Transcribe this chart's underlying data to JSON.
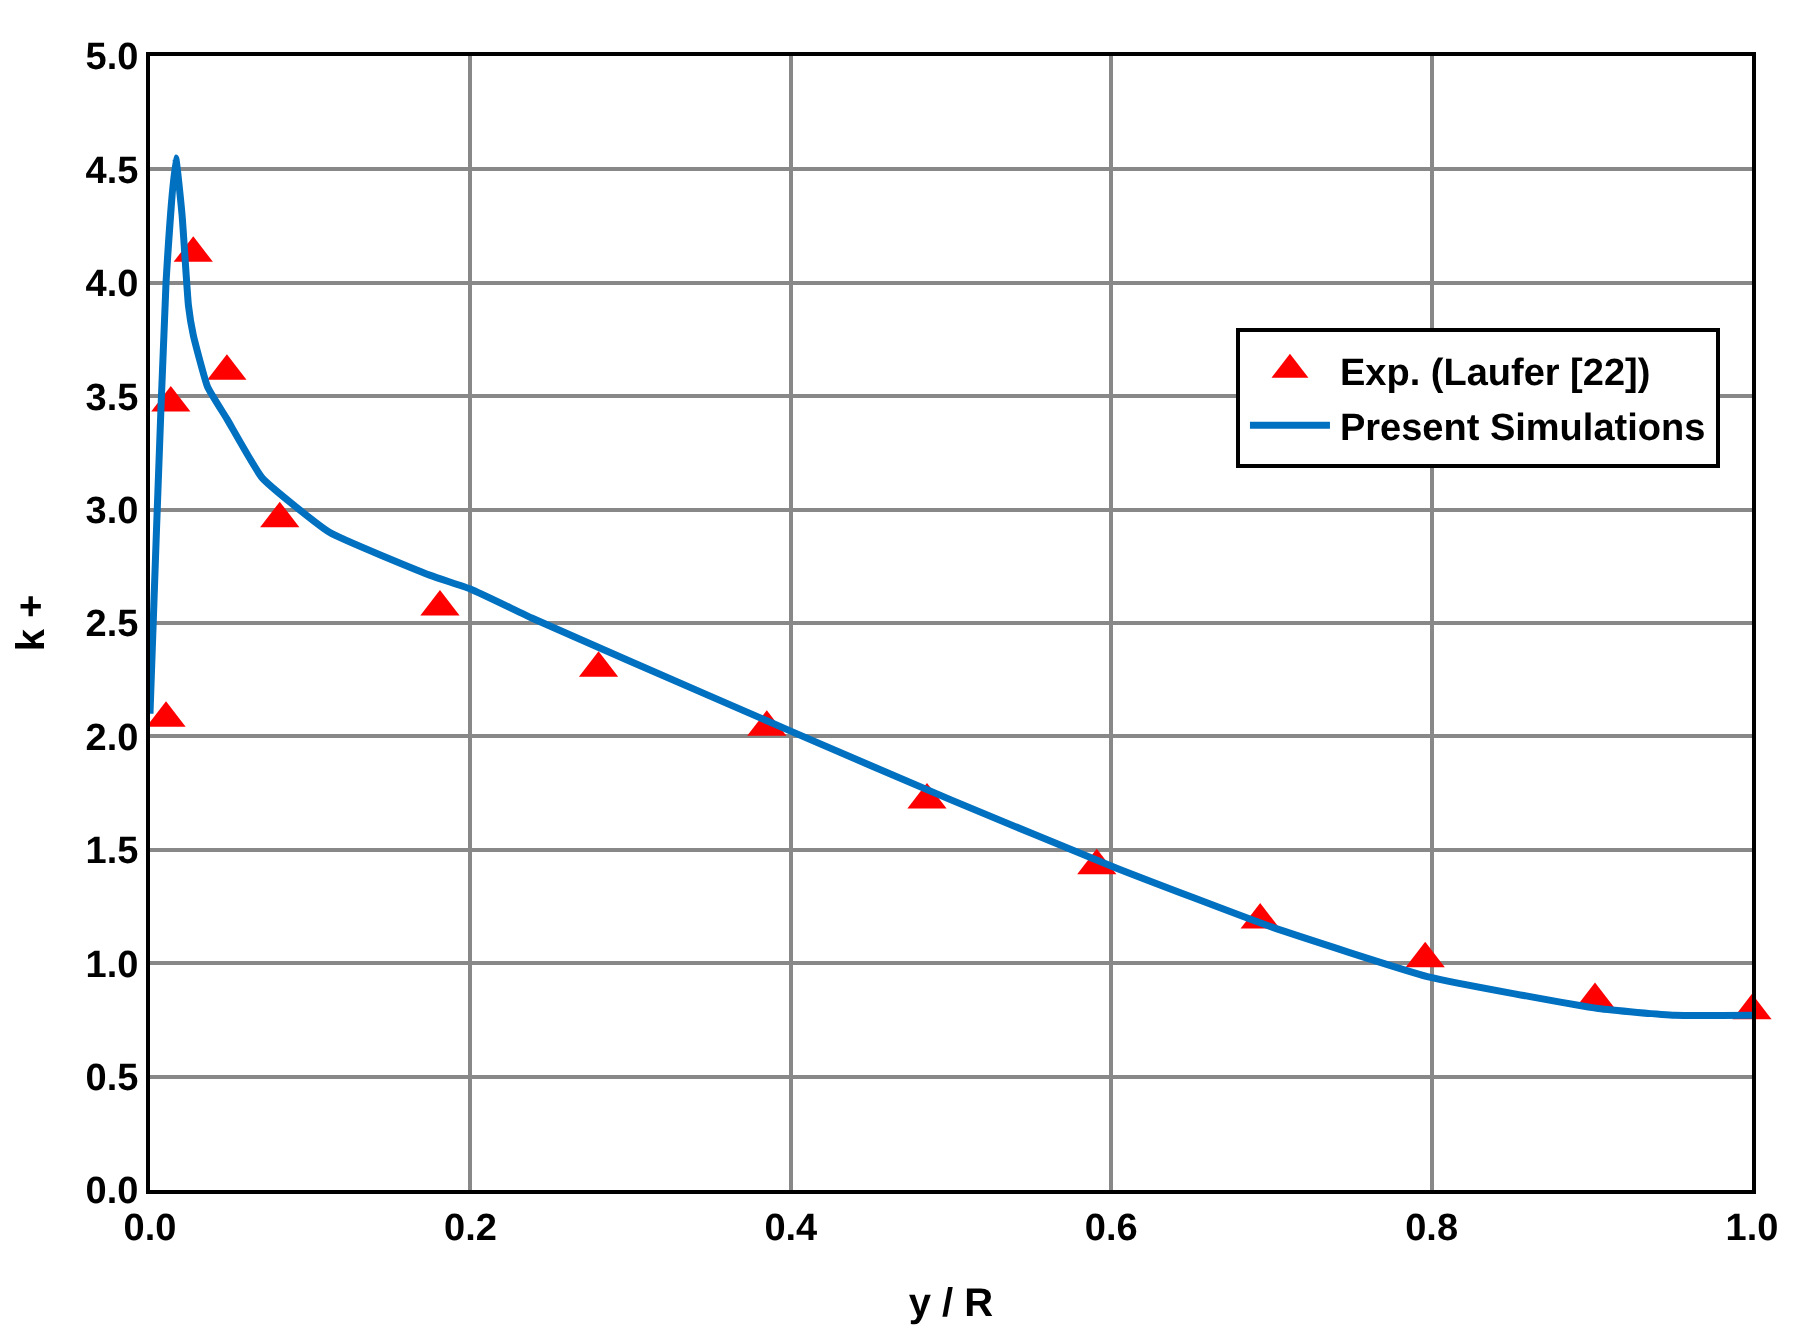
{
  "chart_data": {
    "type": "scatter",
    "xlabel": "y / R",
    "ylabel": "k +",
    "xlim": [
      0,
      1.0
    ],
    "ylim": [
      0,
      5.0
    ],
    "xticks": [
      {
        "value": 0,
        "label": "0.0"
      },
      0.2,
      0.4,
      0.6,
      0.8,
      {
        "value": 1.0,
        "label": "1.0"
      }
    ],
    "yticks": [
      {
        "value": 0,
        "label": "0.0"
      },
      0.5,
      {
        "value": 1,
        "label": "1.0"
      },
      1.5,
      {
        "value": 2,
        "label": "2.0"
      },
      2.5,
      {
        "value": 3,
        "label": "3.0"
      },
      3.5,
      {
        "value": 4,
        "label": "4.0"
      },
      4.5,
      {
        "value": 5,
        "label": "5.0"
      }
    ],
    "grid": true,
    "legend": "top right",
    "series": [
      {
        "name": "Exp. (Laufer [22])",
        "marker": "triangle",
        "color": "#ff0000",
        "x": [
          0.01,
          0.013,
          0.027,
          0.048,
          0.081,
          0.181,
          0.28,
          0.385,
          0.485,
          0.591,
          0.693,
          0.796,
          0.902,
          1.0
        ],
        "values": [
          2.08,
          3.47,
          4.13,
          3.61,
          2.96,
          2.57,
          2.3,
          2.04,
          1.72,
          1.43,
          1.19,
          1.02,
          0.84,
          0.79
        ]
      },
      {
        "name": "Present Simulations",
        "type": "line",
        "marker": "none",
        "line_style": "solid",
        "color": "#0070c0",
        "x": [
          0,
          0.004,
          0.01,
          0.016,
          0.02,
          0.024,
          0.027,
          0.036,
          0.048,
          0.07,
          0.112,
          0.175,
          0.2,
          0.239,
          0.3,
          0.401,
          0.5,
          0.603,
          0.7,
          0.798,
          0.904,
          0.952,
          1.0
        ],
        "values": [
          2.1,
          2.9,
          4.0,
          4.55,
          4.3,
          3.9,
          3.77,
          3.54,
          3.4,
          3.14,
          2.9,
          2.71,
          2.65,
          2.52,
          2.33,
          2.02,
          1.72,
          1.42,
          1.16,
          0.94,
          0.8,
          0.77,
          0.77
        ]
      }
    ]
  }
}
